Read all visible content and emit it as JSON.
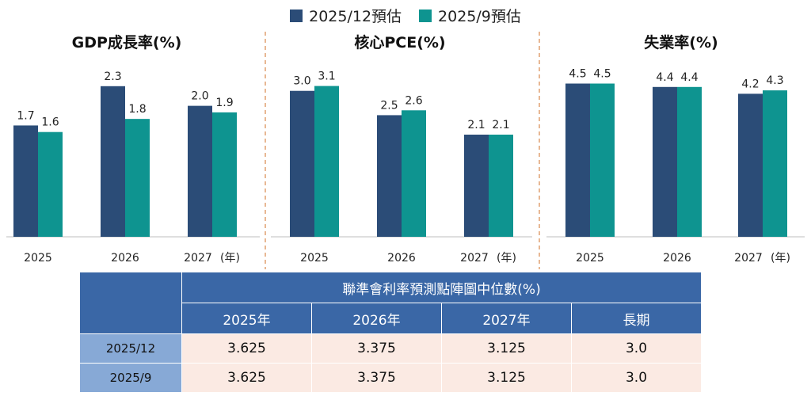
{
  "legend": [
    {
      "label": "2025/12預估",
      "color": "#2b4c77"
    },
    {
      "label": "2025/9預估",
      "color": "#0e9490"
    }
  ],
  "year_unit_label": "(年)",
  "chart_data": [
    {
      "type": "bar",
      "title": "GDP成長率(%)",
      "categories": [
        "2025",
        "2026",
        "2027"
      ],
      "series": [
        {
          "name": "2025/12預估",
          "values": [
            1.7,
            2.3,
            2.0
          ],
          "labels": [
            "1.7",
            "2.3",
            "2.0"
          ]
        },
        {
          "name": "2025/9預估",
          "values": [
            1.6,
            1.8,
            1.9
          ],
          "labels": [
            "1.6",
            "1.8",
            "1.9"
          ]
        }
      ],
      "ylim": [
        0,
        2.6
      ]
    },
    {
      "type": "bar",
      "title": "核心PCE(%)",
      "categories": [
        "2025",
        "2026",
        "2027"
      ],
      "series": [
        {
          "name": "2025/12預估",
          "values": [
            3.0,
            2.5,
            2.1
          ],
          "labels": [
            "3.0",
            "2.5",
            "2.1"
          ]
        },
        {
          "name": "2025/9預估",
          "values": [
            3.1,
            2.6,
            2.1
          ],
          "labels": [
            "3.1",
            "2.6",
            "2.1"
          ]
        }
      ],
      "ylim": [
        0,
        3.5
      ]
    },
    {
      "type": "bar",
      "title": "失業率(%)",
      "categories": [
        "2025",
        "2026",
        "2027"
      ],
      "series": [
        {
          "name": "2025/12預估",
          "values": [
            4.5,
            4.4,
            4.2
          ],
          "labels": [
            "4.5",
            "4.4",
            "4.2"
          ]
        },
        {
          "name": "2025/9預估",
          "values": [
            4.5,
            4.4,
            4.3
          ],
          "labels": [
            "4.5",
            "4.4",
            "4.3"
          ]
        }
      ],
      "ylim": [
        0,
        5.0
      ]
    }
  ],
  "table": {
    "title": "聯準會利率預測點陣圖中位數(%)",
    "columns": [
      "2025年",
      "2026年",
      "2027年",
      "長期"
    ],
    "rows": [
      {
        "label": "2025/12",
        "values": [
          "3.625",
          "3.375",
          "3.125",
          "3.0"
        ]
      },
      {
        "label": "2025/9",
        "values": [
          "3.625",
          "3.375",
          "3.125",
          "3.0"
        ]
      }
    ]
  }
}
